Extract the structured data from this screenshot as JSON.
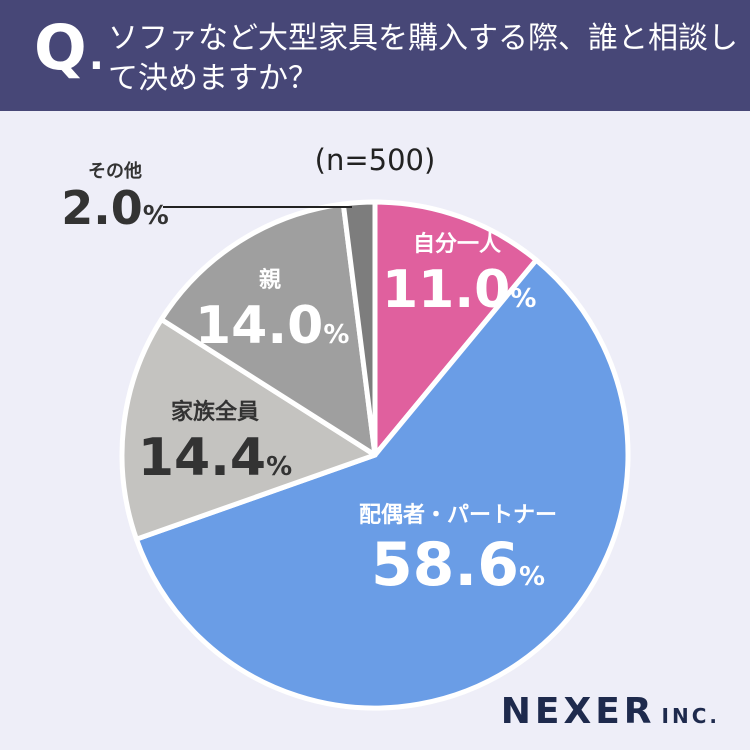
{
  "header": {
    "q_letter": "Q",
    "q_dot": ".",
    "question": "ソファなど大型家具を購入する際、誰と相談して決めますか？"
  },
  "n_label": "(n=500)",
  "chart_data": {
    "type": "pie",
    "start_angle_deg": 0,
    "direction": "clockwise",
    "slices": [
      {
        "label": "自分一人",
        "value": 11.0,
        "display": "11.0",
        "color": "#e0609e"
      },
      {
        "label": "配偶者・パートナー",
        "value": 58.6,
        "display": "58.6",
        "color": "#6a9de6"
      },
      {
        "label": "家族全員",
        "value": 14.4,
        "display": "14.4",
        "color": "#c4c3c0"
      },
      {
        "label": "親",
        "value": 14.0,
        "display": "14.0",
        "color": "#9f9f9f"
      },
      {
        "label": "その他",
        "value": 2.0,
        "display": "2.0",
        "color": "#7d7d7d"
      }
    ],
    "unit": "%"
  },
  "brand": {
    "name": "NEXER",
    "suffix": "INC."
  }
}
